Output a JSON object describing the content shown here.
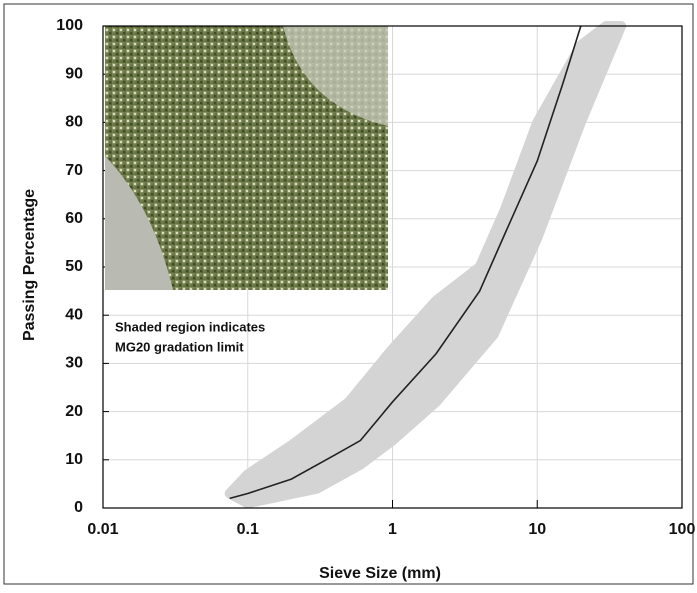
{
  "chart_data": {
    "type": "line",
    "xlabel": "Sieve Size (mm)",
    "ylabel": "Passing Percentage",
    "annotation": [
      "Shaded region indicates",
      "MG20 gradation limit"
    ],
    "xscale": "log",
    "xlim": [
      0.01,
      100
    ],
    "xticks": [
      0.01,
      0.1,
      1,
      10,
      100
    ],
    "ylim": [
      0,
      100
    ],
    "yticks": [
      0,
      10,
      20,
      30,
      40,
      50,
      60,
      70,
      80,
      90,
      100
    ],
    "grid": true,
    "series": [
      {
        "color": "#222222",
        "x": [
          0.075,
          0.1,
          0.2,
          0.4,
          0.6,
          1,
          2,
          4,
          6,
          10,
          15,
          20
        ],
        "values": [
          2,
          3,
          6,
          11,
          14,
          22,
          32,
          45,
          57,
          72,
          88,
          100
        ]
      }
    ],
    "band": {
      "color": "#d4d4d4",
      "upper": {
        "x": [
          0.075,
          0.1,
          0.2,
          0.5,
          1,
          2,
          4,
          6,
          10,
          20,
          30
        ],
        "values": [
          3,
          7,
          13,
          22,
          33,
          43,
          50,
          62,
          80,
          96,
          100
        ]
      },
      "lower": {
        "x": [
          0.1,
          0.3,
          0.6,
          1,
          2,
          5,
          10,
          20,
          38
        ],
        "values": [
          1,
          4,
          9,
          14,
          22,
          36,
          56,
          80,
          100
        ]
      }
    }
  }
}
